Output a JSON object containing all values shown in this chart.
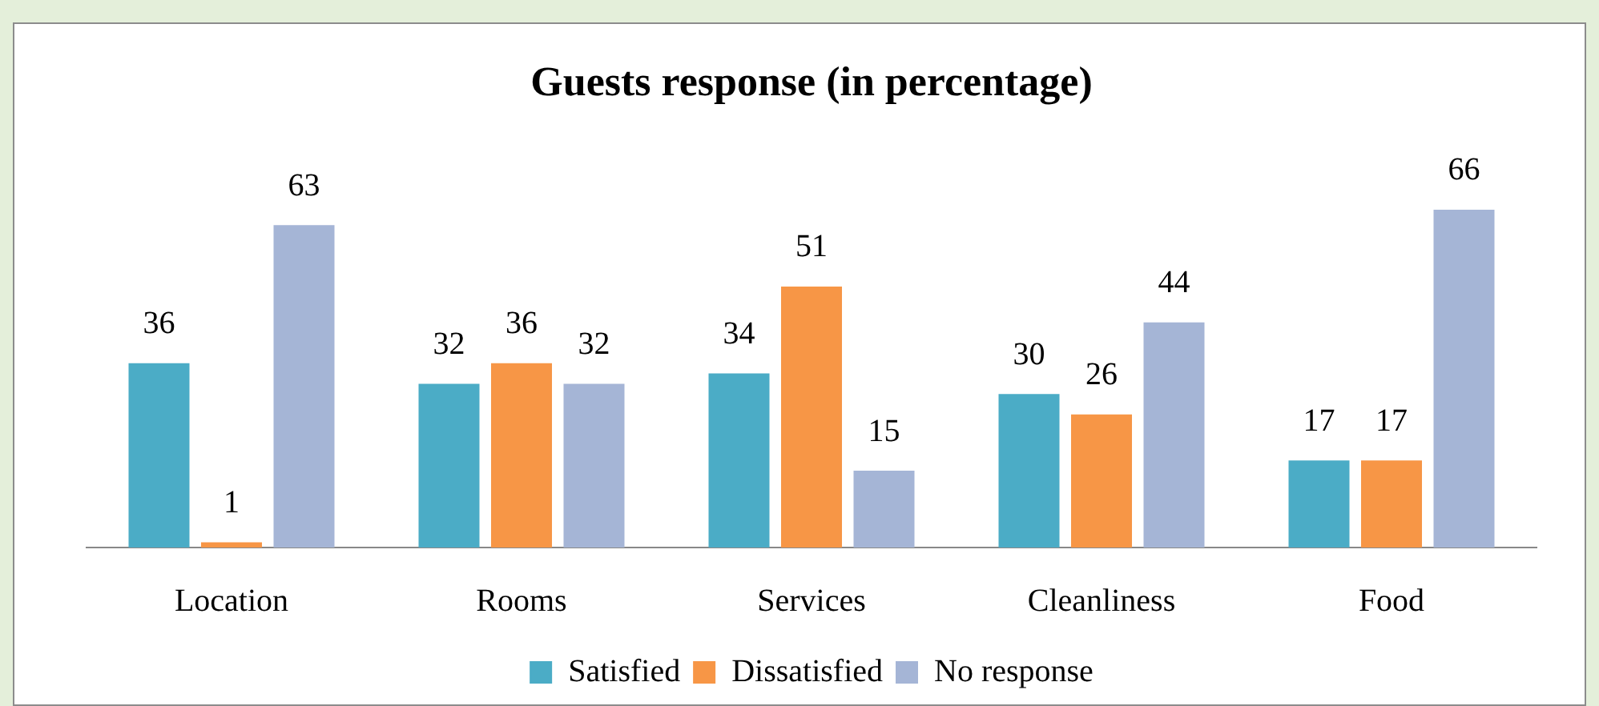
{
  "chart_data": {
    "type": "bar",
    "title": "Guests response (in percentage)",
    "categories": [
      "Location",
      "Rooms",
      "Services",
      "Cleanliness",
      "Food"
    ],
    "series": [
      {
        "name": "Satisfied",
        "color": "#4bacc6",
        "values": [
          36,
          32,
          34,
          30,
          17
        ]
      },
      {
        "name": "Dissatisfied",
        "color": "#f79646",
        "values": [
          1,
          36,
          51,
          26,
          17
        ]
      },
      {
        "name": "No response",
        "color": "#a5b5d6",
        "values": [
          63,
          32,
          15,
          44,
          66
        ]
      }
    ],
    "data_labels": true,
    "legend": "bottom"
  }
}
